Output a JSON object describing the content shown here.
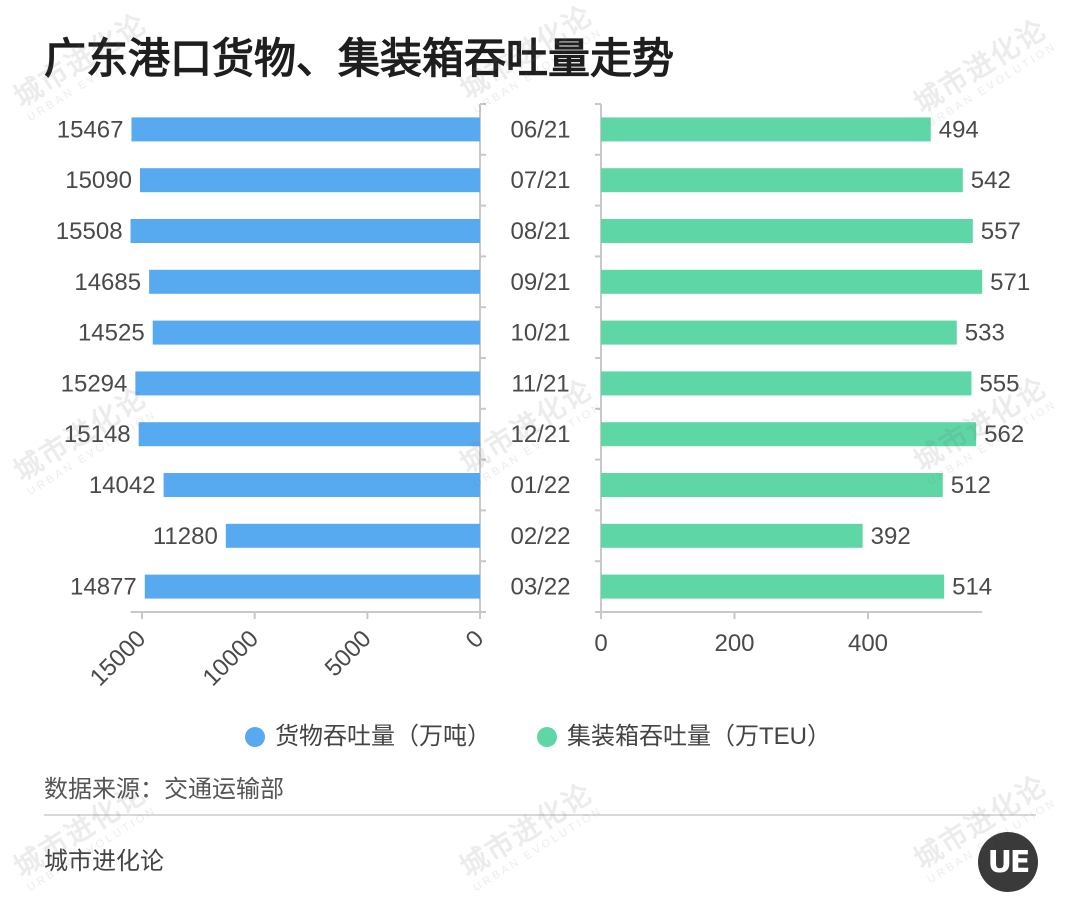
{
  "chart_data": {
    "type": "bar",
    "title": "广东港口货物、集装箱吞吐量走势",
    "categories": [
      "06/21",
      "07/21",
      "08/21",
      "09/21",
      "10/21",
      "11/21",
      "12/21",
      "01/22",
      "02/22",
      "03/22"
    ],
    "series": [
      {
        "name": "货物吞吐量（万吨）",
        "color": "#57aaf0",
        "values": [
          15467,
          15090,
          15508,
          14685,
          14525,
          15294,
          15148,
          14042,
          11280,
          14877
        ],
        "ticks": [
          15000,
          10000,
          5000,
          0
        ],
        "xlim": [
          0,
          15508
        ]
      },
      {
        "name": "集装箱吞吐量（万TEU）",
        "color": "#5fd6a6",
        "values": [
          494,
          542,
          557,
          571,
          533,
          555,
          562,
          512,
          392,
          514
        ],
        "ticks": [
          0,
          200,
          400
        ],
        "xlim": [
          0,
          571
        ]
      }
    ],
    "legend_position": "bottom",
    "grid": false
  },
  "source": "数据来源：交通运输部",
  "footer": {
    "brand": "城市进化论"
  },
  "logo": {
    "text": "UE"
  },
  "watermark": {
    "text": "城市进化论",
    "subtext": "URBAN EVOLUTION"
  },
  "colors": {
    "axis": "#c8c8c8",
    "text": "#4a4a4a"
  }
}
